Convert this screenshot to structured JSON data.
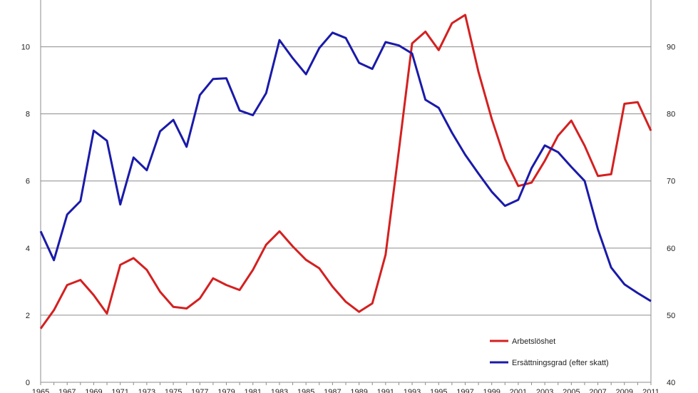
{
  "chart_data": {
    "type": "line",
    "title": "",
    "xlabel": "",
    "ylabel": "",
    "y2label": "",
    "x": [
      1965,
      1966,
      1967,
      1968,
      1969,
      1970,
      1971,
      1972,
      1973,
      1974,
      1975,
      1976,
      1977,
      1978,
      1979,
      1980,
      1981,
      1982,
      1983,
      1984,
      1985,
      1986,
      1987,
      1988,
      1989,
      1990,
      1991,
      1992,
      1993,
      1994,
      1995,
      1996,
      1997,
      1998,
      1999,
      2000,
      2001,
      2002,
      2003,
      2004,
      2005,
      2006,
      2007,
      2008,
      2009,
      2010,
      2011
    ],
    "xticks": [
      1965,
      1967,
      1969,
      1971,
      1973,
      1975,
      1977,
      1979,
      1981,
      1983,
      1985,
      1987,
      1989,
      1991,
      1993,
      1995,
      1997,
      1999,
      2001,
      2003,
      2005,
      2007,
      2009,
      2011
    ],
    "ylim": [
      0,
      11.5
    ],
    "yticks": [
      0,
      2,
      4,
      6,
      8,
      10
    ],
    "y2lim": [
      40,
      97.5
    ],
    "y2ticks": [
      40,
      50,
      60,
      70,
      80,
      90
    ],
    "grid": true,
    "legend_position": "bottom-right",
    "series": [
      {
        "name": "Arbetslöshet",
        "axis": "left",
        "color": "#d42020",
        "values": [
          1.6,
          2.15,
          2.9,
          3.05,
          2.6,
          2.05,
          3.5,
          3.7,
          3.35,
          2.7,
          2.25,
          2.2,
          2.5,
          3.1,
          2.9,
          2.75,
          3.35,
          4.1,
          4.5,
          4.05,
          3.65,
          3.4,
          2.85,
          2.4,
          2.1,
          2.35,
          3.8,
          6.9,
          10.1,
          10.45,
          9.9,
          10.7,
          10.95,
          9.25,
          7.85,
          6.65,
          5.85,
          5.95,
          6.6,
          7.35,
          7.8,
          7.05,
          6.15,
          6.2,
          8.3,
          8.35,
          7.5
        ]
      },
      {
        "name": "Ersättningsgrad  (efter skatt)",
        "axis": "right",
        "color": "#1a1aaa",
        "values": [
          62.5,
          58.2,
          65,
          67,
          77.5,
          76,
          66.5,
          73.5,
          71.6,
          77.4,
          79.1,
          75.1,
          82.8,
          85.2,
          85.3,
          80.5,
          79.8,
          83.1,
          91,
          88.3,
          85.9,
          89.8,
          92.1,
          91.3,
          87.6,
          86.7,
          90.7,
          90.2,
          89,
          82.1,
          80.9,
          77.2,
          73.9,
          71.1,
          68.4,
          66.3,
          67.2,
          71.9,
          75.3,
          74.3,
          72.1,
          70,
          62.8,
          57.1,
          54.6,
          53.3,
          52.1
        ]
      }
    ]
  }
}
